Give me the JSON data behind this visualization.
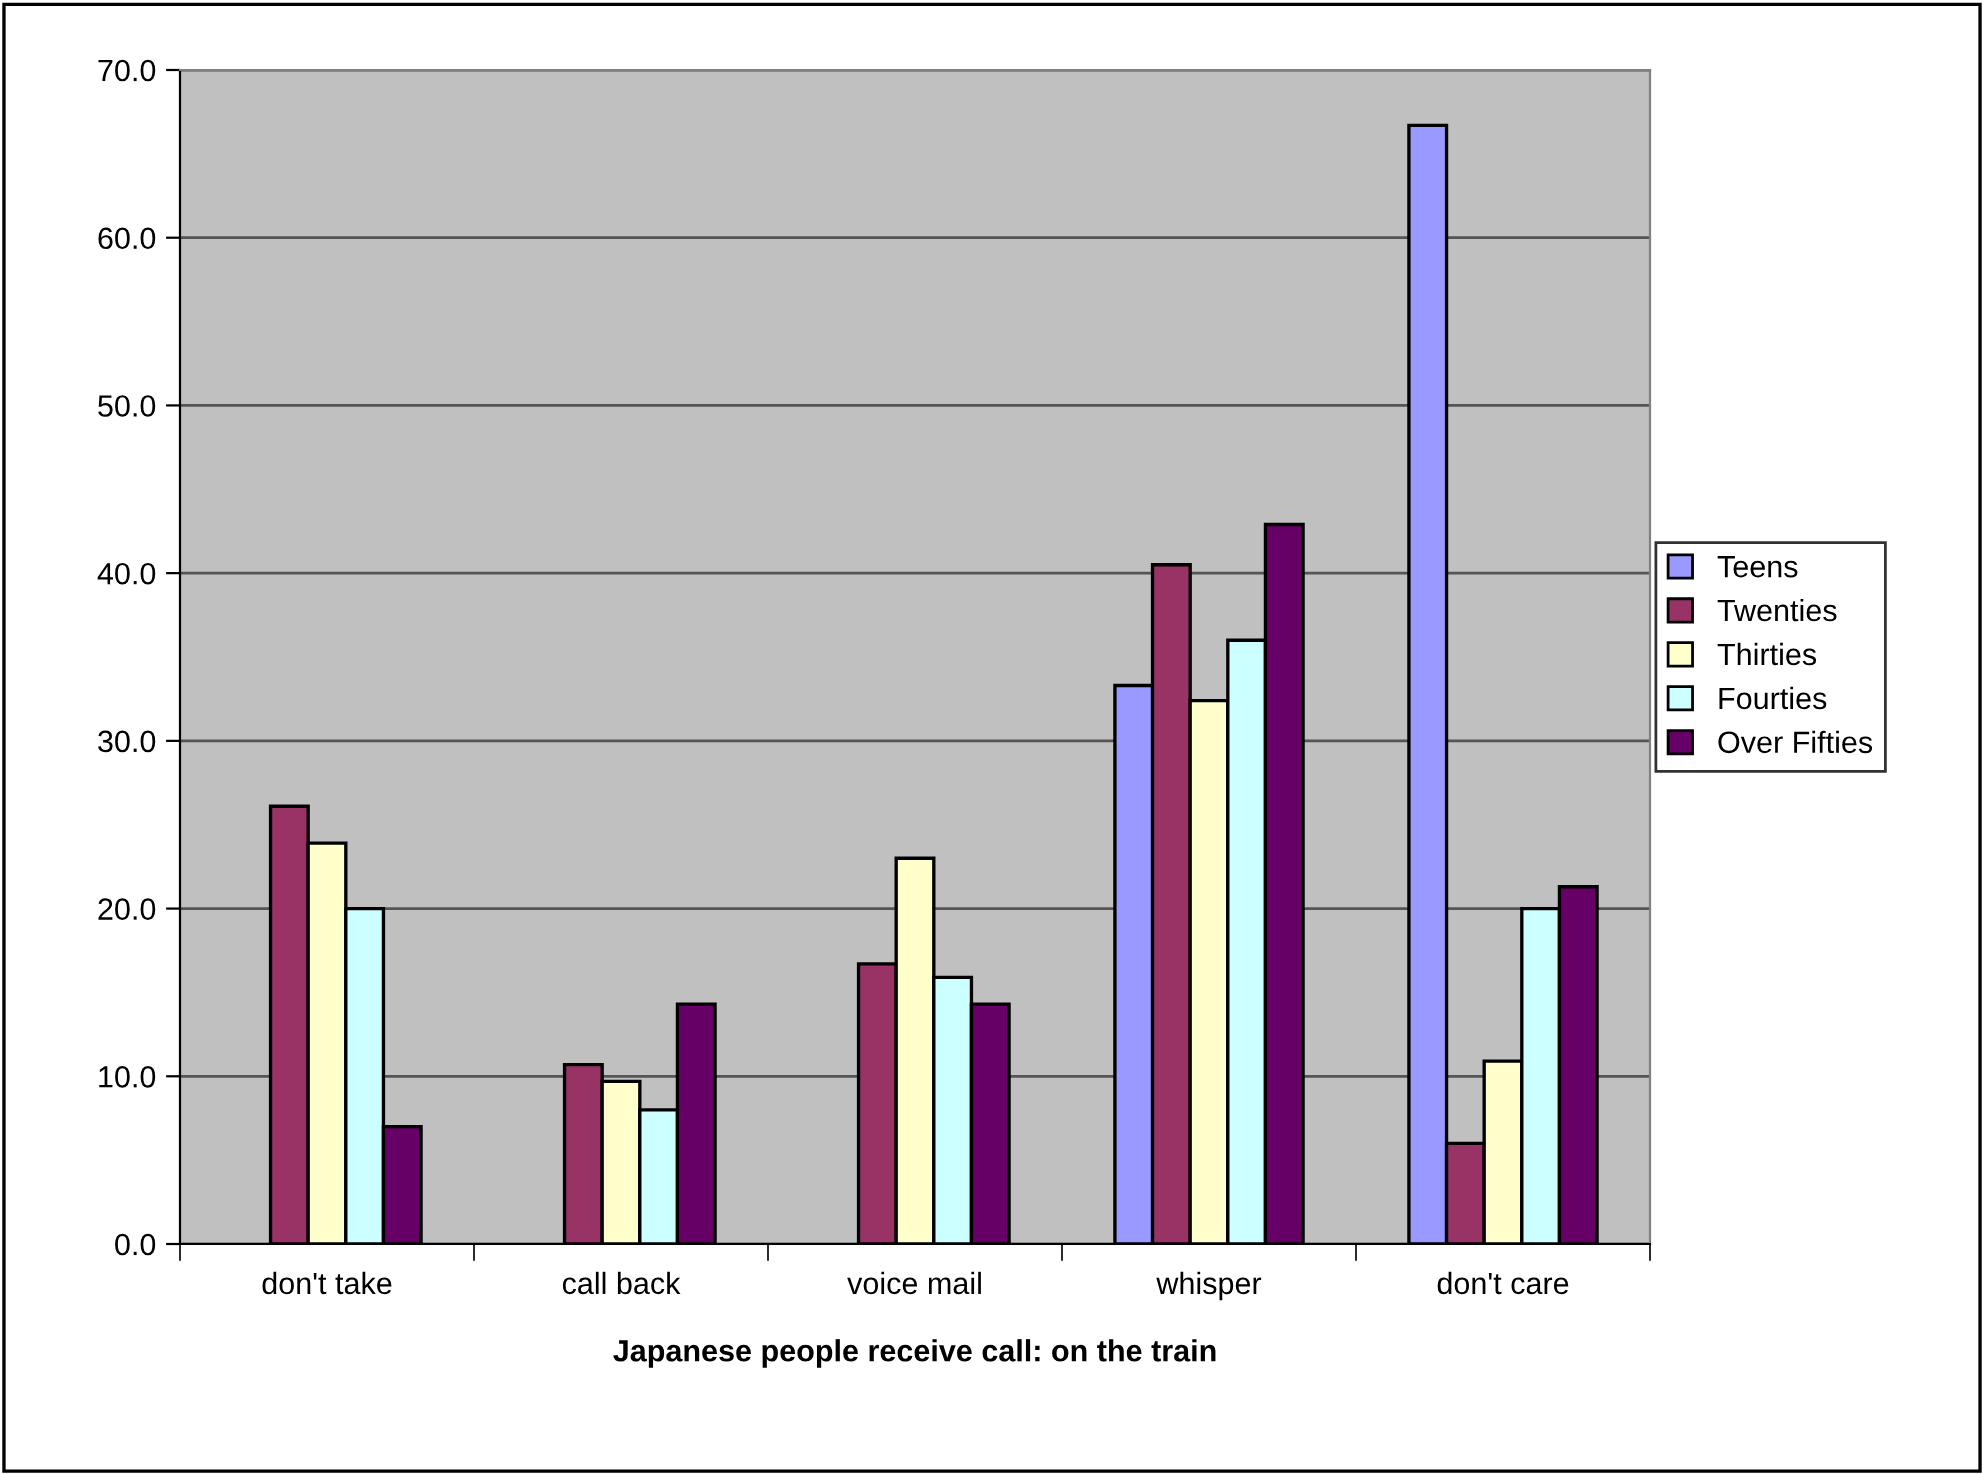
{
  "chart_data": {
    "type": "bar",
    "xlabel": "Japanese people receive call: on the train",
    "categories": [
      "don't take",
      "call back",
      "voice mail",
      "whisper",
      "don't care"
    ],
    "series": [
      {
        "name": "Teens",
        "color": "#9999ff",
        "values": [
          0,
          0,
          0,
          33.3,
          66.7
        ]
      },
      {
        "name": "Twenties",
        "color": "#993366",
        "values": [
          26.1,
          10.7,
          16.7,
          40.5,
          6.0
        ]
      },
      {
        "name": "Thirties",
        "color": "#ffffcc",
        "values": [
          23.9,
          9.7,
          23.0,
          32.4,
          10.9
        ]
      },
      {
        "name": "Fourties",
        "color": "#ccffff",
        "values": [
          20.0,
          8.0,
          15.9,
          36.0,
          20.0
        ]
      },
      {
        "name": "Over Fifties",
        "color": "#660066",
        "values": [
          7.0,
          14.3,
          14.3,
          42.9,
          21.3
        ]
      }
    ],
    "ylim": [
      0,
      70
    ],
    "yticks": [
      {
        "value": 0,
        "label": "0.0"
      },
      {
        "value": 10,
        "label": "10.0"
      },
      {
        "value": 20,
        "label": "20.0"
      },
      {
        "value": 30,
        "label": "30.0"
      },
      {
        "value": 40,
        "label": "40.0"
      },
      {
        "value": 50,
        "label": "50.0"
      },
      {
        "value": 60,
        "label": "60.0"
      },
      {
        "value": 70,
        "label": "70.0"
      }
    ],
    "grid": "y",
    "legend": "right"
  }
}
